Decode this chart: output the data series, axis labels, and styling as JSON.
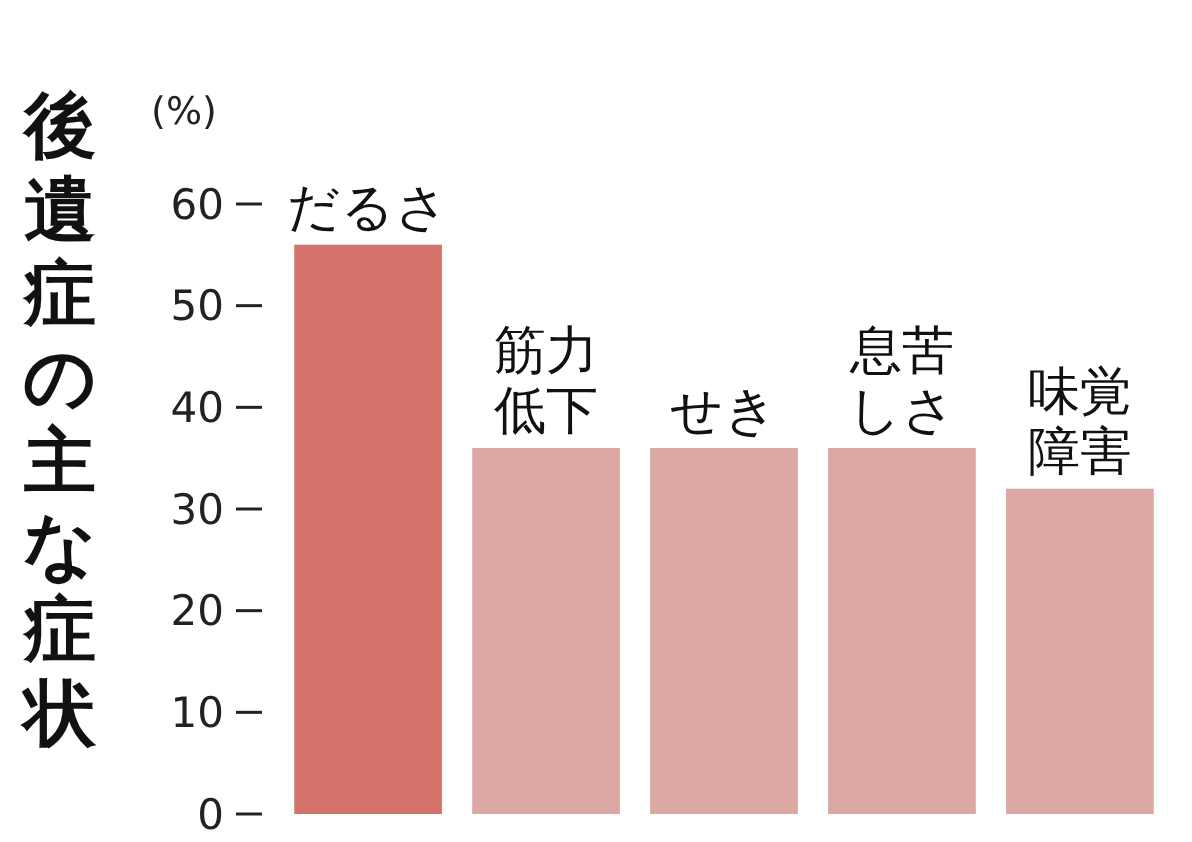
{
  "chart_data": {
    "type": "bar",
    "title": "後遺症の主な症状",
    "ylabel": "(%)",
    "categories": [
      "だるさ",
      "筋力低下",
      "せき",
      "息苦しさ",
      "味覚障害"
    ],
    "values": [
      56,
      36,
      36,
      36,
      32
    ],
    "colors": [
      "#d4736b",
      "#dba8a4",
      "#dba8a4",
      "#dba8a4",
      "#dba8a4"
    ],
    "ylim": [
      0,
      60
    ],
    "yticks": [
      0,
      10,
      20,
      30,
      40,
      50,
      60
    ],
    "grid": false
  }
}
